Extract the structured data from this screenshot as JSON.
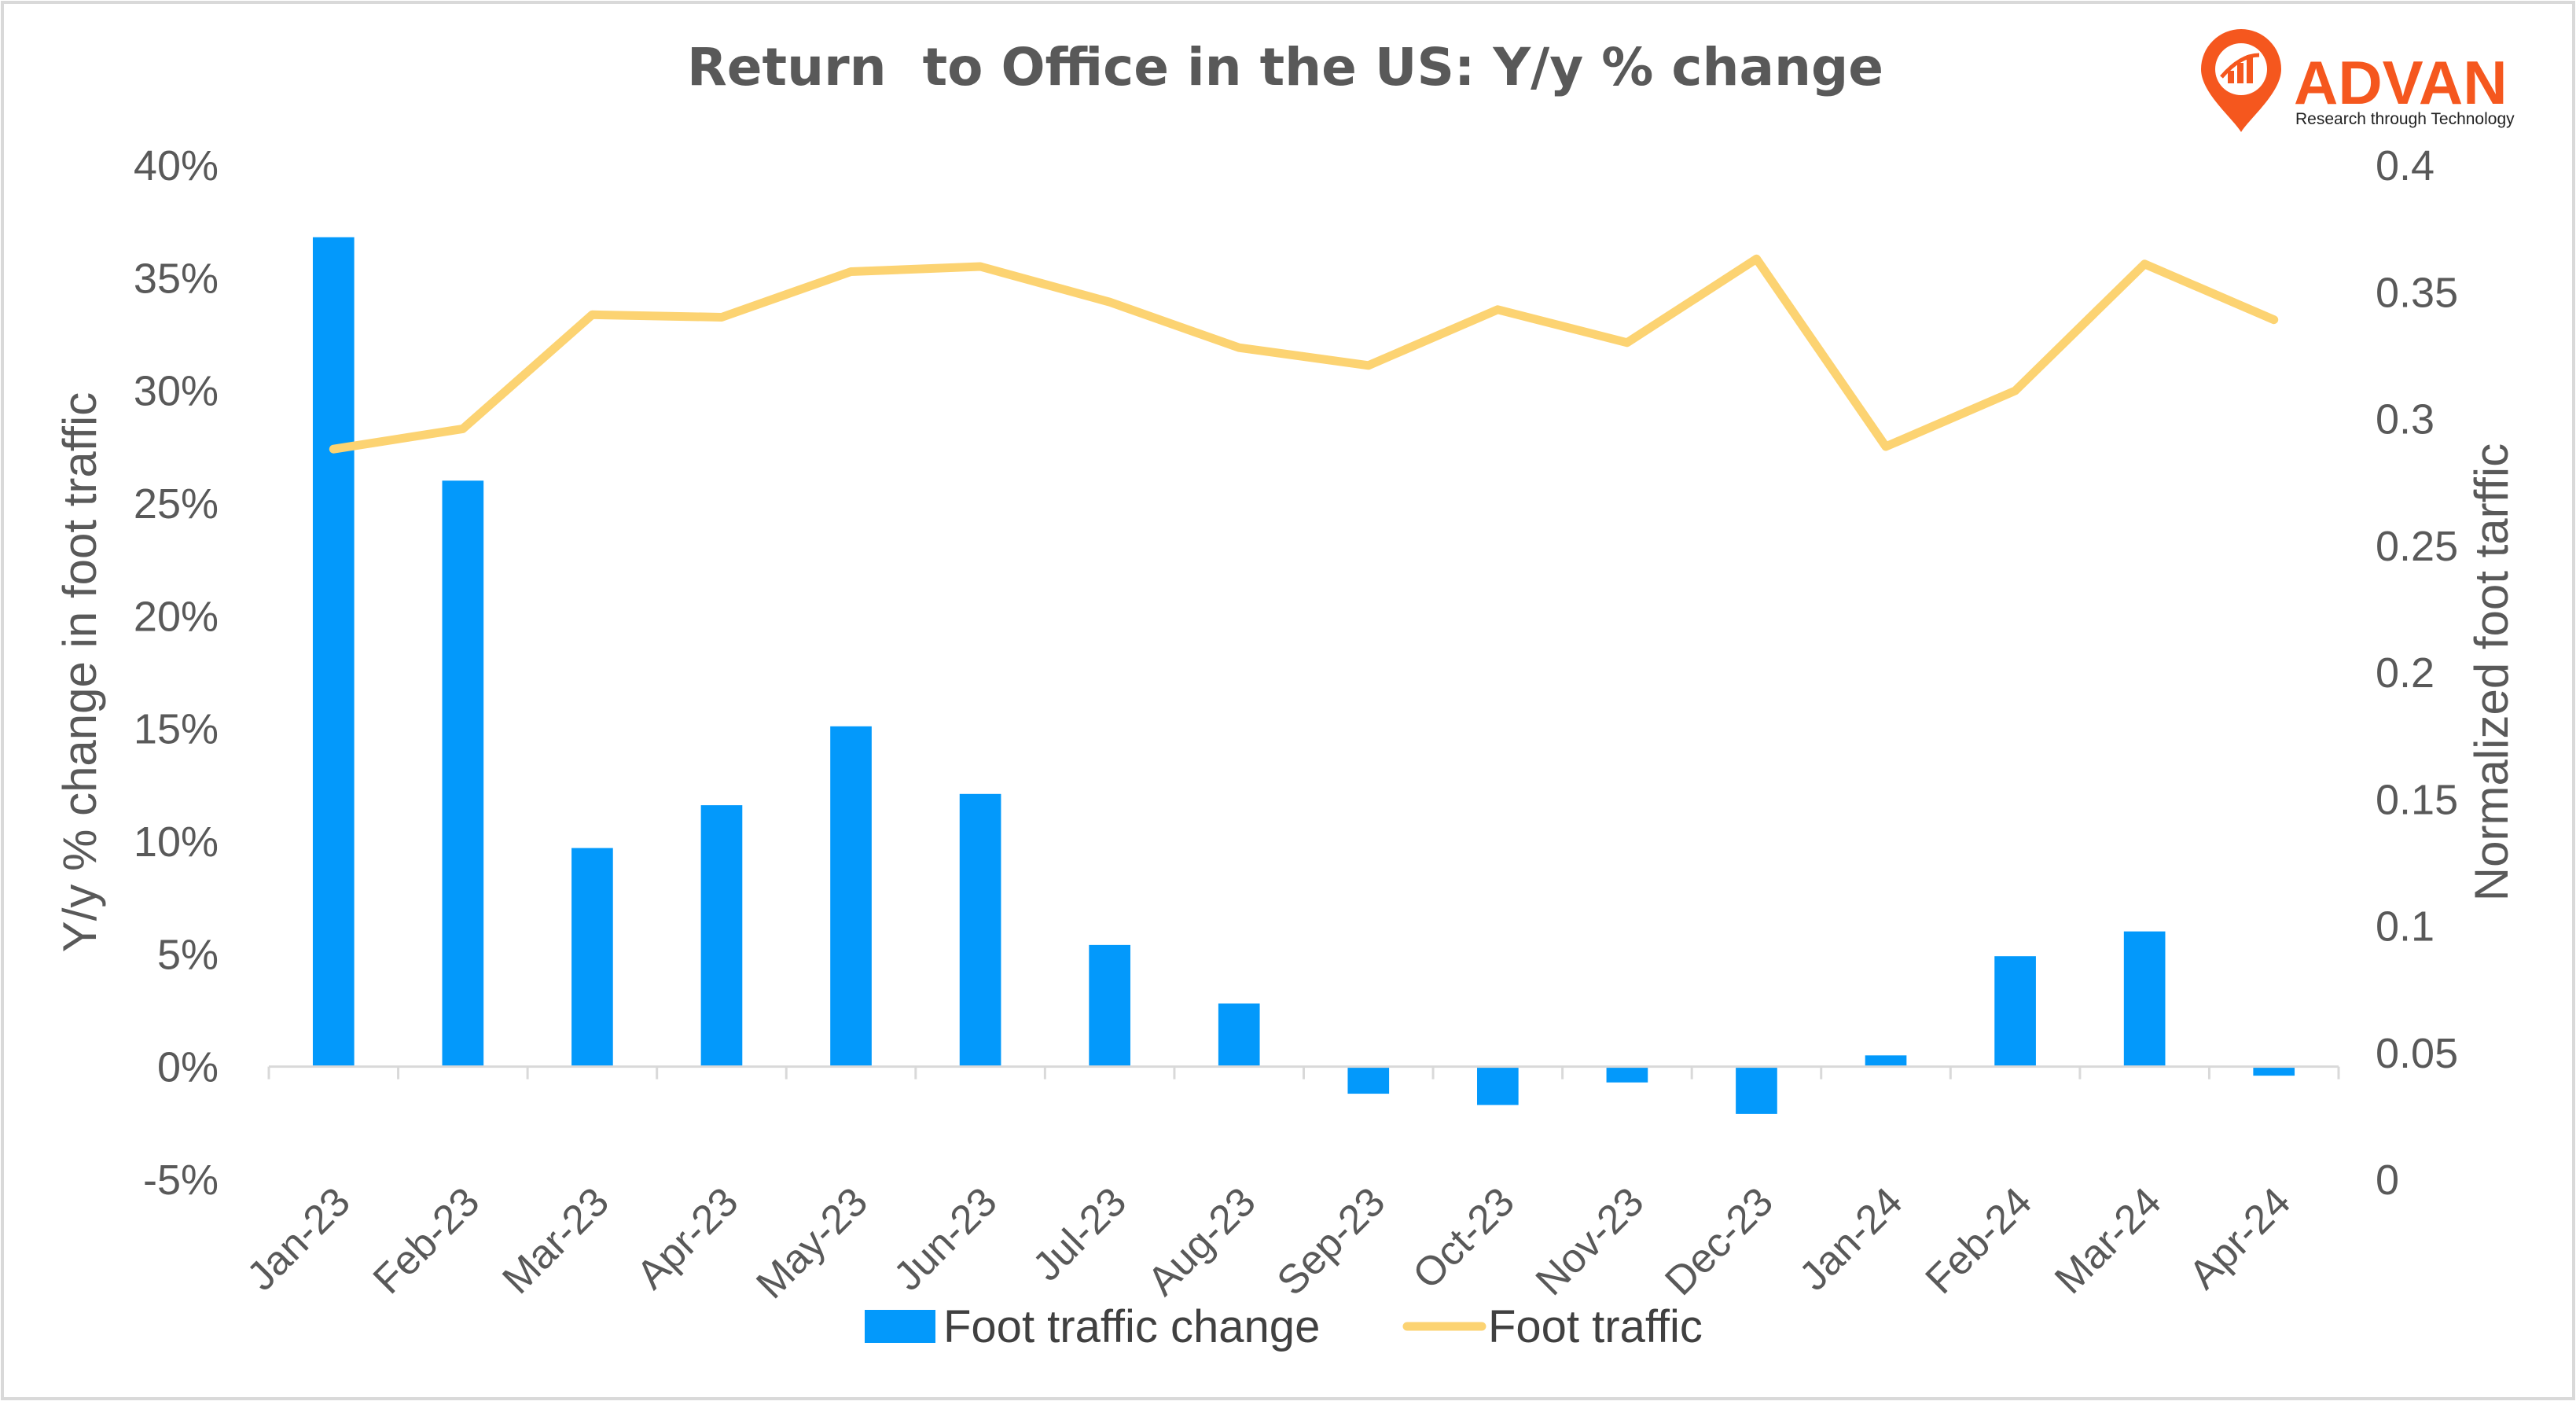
{
  "chart_data": {
    "type": "bar+line",
    "title": "Return  to Office in the US: Y/y % change",
    "categories": [
      "Jan-23",
      "Feb-23",
      "Mar-23",
      "Apr-23",
      "May-23",
      "Jun-23",
      "Jul-23",
      "Aug-23",
      "Sep-23",
      "Oct-23",
      "Nov-23",
      "Dec-23",
      "Jan-24",
      "Feb-24",
      "Mar-24",
      "Apr-24"
    ],
    "series": [
      {
        "name": "Foot traffic change",
        "type": "bar",
        "axis": "left",
        "color": "#0399fb",
        "values": [
          36.8,
          26.0,
          9.7,
          11.6,
          15.1,
          12.1,
          5.4,
          2.8,
          -1.2,
          -1.7,
          -0.7,
          -2.1,
          0.5,
          4.9,
          6.0,
          -0.4
        ]
      },
      {
        "name": "Foot traffic",
        "type": "line",
        "axis": "right",
        "color": "#fcd372",
        "values": [
          0.288,
          0.296,
          0.341,
          0.34,
          0.358,
          0.36,
          0.346,
          0.328,
          0.321,
          0.343,
          0.33,
          0.363,
          0.289,
          0.311,
          0.361,
          0.339
        ]
      }
    ],
    "y_left": {
      "label": "Y/y % change in foot traffic",
      "ylim": [
        -5,
        40
      ],
      "ticks": [
        "40%",
        "35%",
        "30%",
        "25%",
        "20%",
        "15%",
        "10%",
        "5%",
        "0%",
        "-5%"
      ]
    },
    "y_right": {
      "label": "Normalized foot tarffic",
      "ylim": [
        0,
        0.4
      ],
      "ticks": [
        "0.4",
        "0.35",
        "0.3",
        "0.25",
        "0.2",
        "0.15",
        "0.1",
        "0.05",
        "0"
      ]
    },
    "grid": false,
    "legend": "bottom"
  },
  "brand": {
    "name": "ADVAN",
    "tagline": "Research through Technology",
    "icon": "map-pin-chart-icon",
    "color": "#f5571e"
  }
}
